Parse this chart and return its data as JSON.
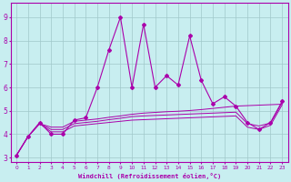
{
  "xlabel": "Windchill (Refroidissement éolien,°C)",
  "bg_color": "#c8eef0",
  "line_color": "#aa00aa",
  "grid_color": "#b8d8da",
  "xlim": [
    -0.5,
    23.5
  ],
  "ylim": [
    2.8,
    9.6
  ],
  "xticks": [
    0,
    1,
    2,
    3,
    4,
    5,
    6,
    7,
    8,
    9,
    10,
    11,
    12,
    13,
    14,
    15,
    16,
    17,
    18,
    19,
    20,
    21,
    22,
    23
  ],
  "yticks": [
    3,
    4,
    5,
    6,
    7,
    8,
    9
  ],
  "series_spiky": [
    3.1,
    3.9,
    4.5,
    4.0,
    4.0,
    4.6,
    4.7,
    6.0,
    7.6,
    9.0,
    6.0,
    8.7,
    6.0,
    6.5,
    6.1,
    8.2,
    6.3,
    5.3,
    5.6,
    5.2,
    4.5,
    4.2,
    4.5,
    5.4
  ],
  "series_smooth": [
    [
      3.1,
      3.9,
      4.45,
      4.3,
      4.3,
      4.55,
      4.6,
      4.65,
      4.72,
      4.78,
      4.85,
      4.9,
      4.93,
      4.96,
      4.98,
      5.01,
      5.05,
      5.1,
      5.15,
      5.2,
      5.22,
      5.24,
      5.26,
      5.28
    ],
    [
      3.1,
      3.9,
      4.45,
      4.2,
      4.2,
      4.45,
      4.5,
      4.55,
      4.62,
      4.68,
      4.75,
      4.78,
      4.8,
      4.82,
      4.84,
      4.86,
      4.88,
      4.9,
      4.92,
      4.94,
      4.45,
      4.35,
      4.48,
      5.35
    ],
    [
      3.1,
      3.9,
      4.45,
      4.1,
      4.1,
      4.35,
      4.4,
      4.45,
      4.5,
      4.55,
      4.6,
      4.62,
      4.64,
      4.66,
      4.68,
      4.7,
      4.72,
      4.74,
      4.76,
      4.78,
      4.3,
      4.2,
      4.38,
      5.25
    ]
  ]
}
